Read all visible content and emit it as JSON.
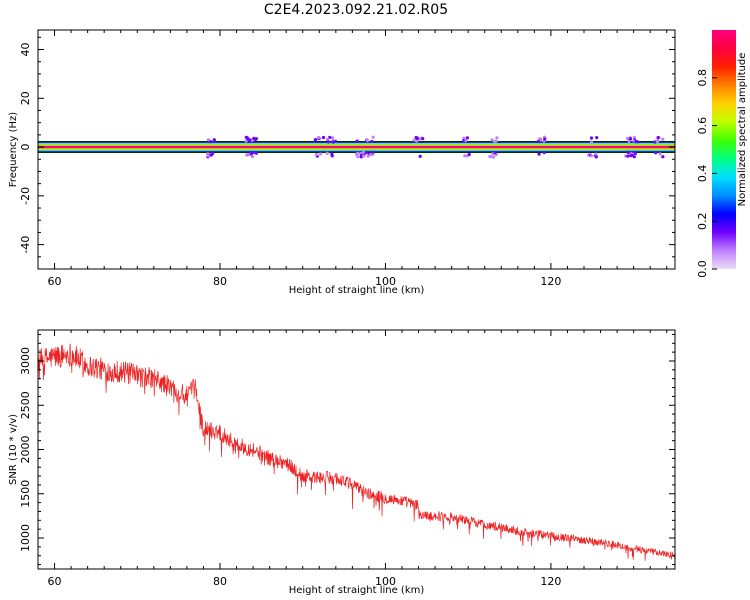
{
  "figure_title": "C2E4.2023.092.21.02.R05",
  "chart_data": [
    {
      "type": "heatmap",
      "xlabel": "Height of straight line (km)",
      "ylabel": "Frequency (Hz)",
      "xlim": [
        58,
        135
      ],
      "ylim": [
        -50,
        48
      ],
      "x_ticks": [
        60,
        80,
        100,
        120
      ],
      "y_ticks": [
        -40,
        -20,
        0,
        20,
        40
      ],
      "grid": false,
      "dominant_band_hz": 0,
      "scatter_clusters_km": [
        79,
        83.5,
        84,
        92,
        93.5,
        97,
        98,
        104,
        110,
        113,
        119,
        125,
        129.5,
        130,
        133
      ],
      "colorbar": {
        "label": "Normalized spectral amplitude",
        "range": [
          0.0,
          1.0
        ],
        "ticks": [
          "0.0",
          "0.2",
          "0.4",
          "0.6",
          "0.8"
        ],
        "colormap": [
          "#e8ddf5",
          "#c080ff",
          "#7000ff",
          "#0000ff",
          "#0090ff",
          "#00e0ff",
          "#00ff80",
          "#40ff00",
          "#c0ff00",
          "#ffd000",
          "#ff8000",
          "#ff2000",
          "#ff0040",
          "#ff0080"
        ]
      }
    },
    {
      "type": "line",
      "xlabel": "Height of straight line (km)",
      "ylabel": "SNR (10 * v/v)",
      "xlim": [
        58,
        135
      ],
      "ylim": [
        650,
        3350
      ],
      "x_ticks": [
        60,
        80,
        100,
        120
      ],
      "y_ticks": [
        1000,
        1500,
        2000,
        2500,
        3000
      ],
      "grid": false,
      "series": [
        {
          "color": "#ee2222",
          "x": [
            58,
            60,
            62,
            64,
            66,
            68,
            70,
            72,
            74,
            76,
            77,
            78,
            80,
            82,
            84,
            86,
            88,
            90,
            92,
            94,
            96,
            98,
            100,
            102,
            103.9,
            104.1,
            106,
            108,
            110,
            112,
            114,
            116,
            118,
            120,
            122,
            124,
            126,
            128,
            130,
            132,
            134,
            135
          ],
          "values": [
            3000,
            3050,
            3080,
            2950,
            2900,
            2880,
            2830,
            2800,
            2700,
            2600,
            2700,
            2230,
            2200,
            2050,
            2000,
            1900,
            1850,
            1700,
            1680,
            1680,
            1600,
            1500,
            1450,
            1420,
            1370,
            1260,
            1250,
            1240,
            1200,
            1150,
            1120,
            1080,
            1050,
            1030,
            1000,
            980,
            950,
            920,
            880,
            850,
            820,
            810
          ]
        }
      ]
    }
  ]
}
